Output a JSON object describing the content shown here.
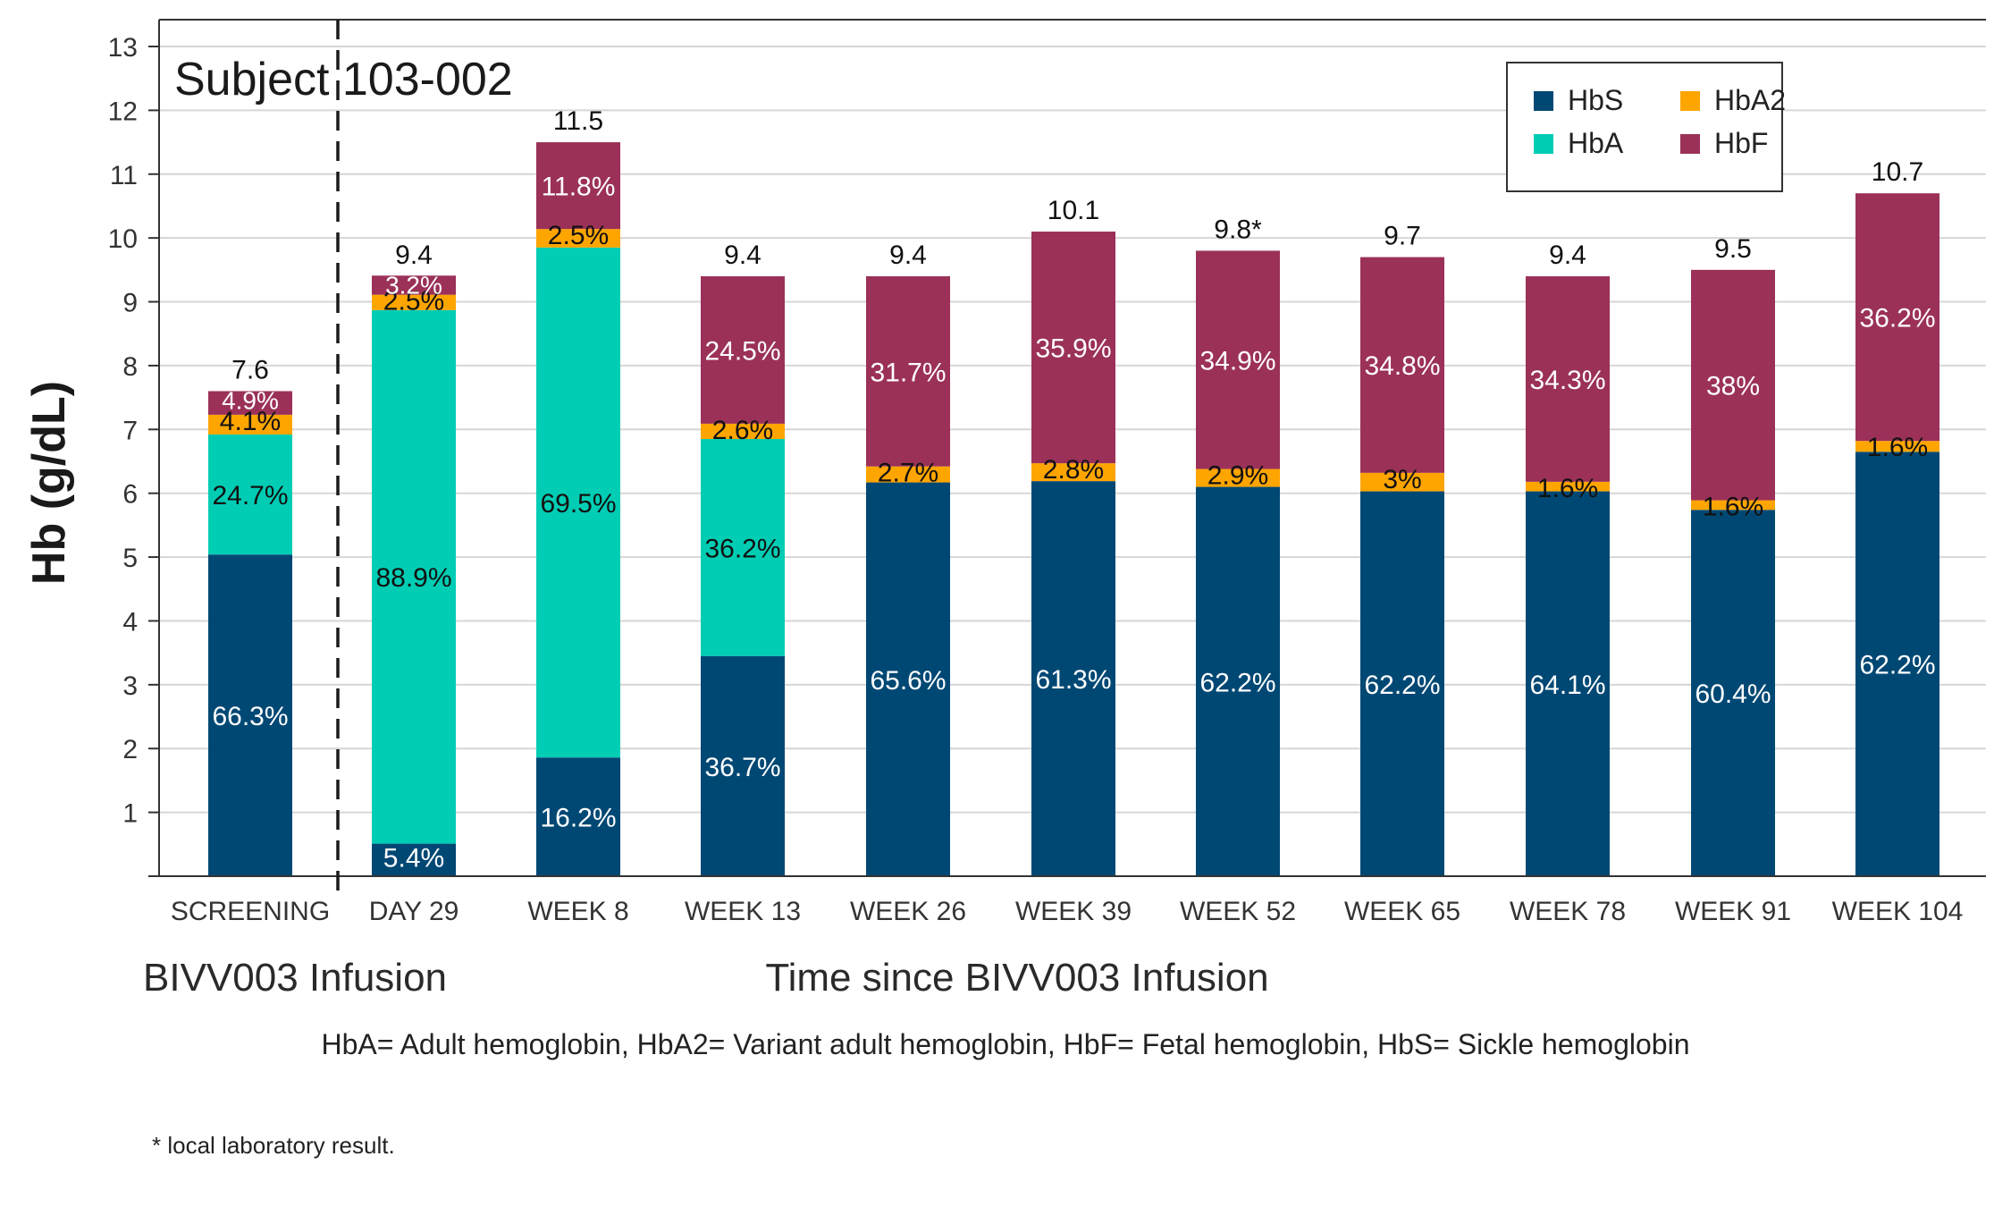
{
  "chart_data": {
    "type": "bar",
    "stacked": true,
    "title": "Subject 103-002",
    "ylabel": "Hb (g/dL)",
    "xlabel": "Time since BIVV003 Infusion",
    "infusion_label": "BIVV003 Infusion",
    "ylim": [
      0,
      13
    ],
    "yticks": [
      "1",
      "2",
      "3",
      "4",
      "5",
      "6",
      "7",
      "8",
      "9",
      "10",
      "11",
      "12",
      "13"
    ],
    "categories": [
      "SCREENING",
      "DAY 29",
      "WEEK 8",
      "WEEK 13",
      "WEEK 26",
      "WEEK 39",
      "WEEK 52",
      "WEEK 65",
      "WEEK 78",
      "WEEK 91",
      "WEEK 104"
    ],
    "totals": [
      7.6,
      9.4,
      11.5,
      9.4,
      9.4,
      10.1,
      9.8,
      9.7,
      9.4,
      9.5,
      10.7
    ],
    "total_labels": [
      "7.6",
      "9.4",
      "11.5",
      "9.4",
      "9.4",
      "10.1",
      "9.8*",
      "9.7",
      "9.4",
      "9.5",
      "10.7"
    ],
    "series": [
      {
        "name": "HbS",
        "color": "#004874",
        "values": [
          5.04,
          0.51,
          1.86,
          3.45,
          6.17,
          6.19,
          6.1,
          6.03,
          6.03,
          5.74,
          6.65
        ],
        "labels": [
          "66.3%",
          "5.4%",
          "16.2%",
          "36.7%",
          "65.6%",
          "61.3%",
          "62.2%",
          "62.2%",
          "64.1%",
          "60.4%",
          "62.2%"
        ]
      },
      {
        "name": "HbA",
        "color": "#00CDB4",
        "values": [
          1.88,
          8.36,
          7.99,
          3.4,
          0,
          0,
          0,
          0,
          0,
          0,
          0
        ],
        "labels": [
          "24.7%",
          "88.9%",
          "69.5%",
          "36.2%",
          "",
          "",
          "",
          "",
          "",
          "",
          ""
        ]
      },
      {
        "name": "HbA2",
        "color": "#FFA500",
        "values": [
          0.31,
          0.24,
          0.29,
          0.24,
          0.25,
          0.28,
          0.28,
          0.29,
          0.15,
          0.15,
          0.17
        ],
        "labels": [
          "4.1%",
          "2.5%",
          "2.5%",
          "2.6%",
          "2.7%",
          "2.8%",
          "2.9%",
          "3%",
          "1.6%",
          "1.6%",
          "1.6%"
        ]
      },
      {
        "name": "HbF",
        "color": "#9B3158",
        "values": [
          0.37,
          0.3,
          1.36,
          2.31,
          2.98,
          3.63,
          3.42,
          3.38,
          3.22,
          3.61,
          3.88
        ],
        "labels": [
          "4.9%",
          "3.2%",
          "11.8%",
          "24.5%",
          "31.7%",
          "35.9%",
          "34.9%",
          "34.8%",
          "34.3%",
          "38%",
          "36.2%"
        ]
      }
    ],
    "legend": {
      "placement": "top-right",
      "order": [
        "HbS",
        "HbA2",
        "HbA",
        "HbF"
      ]
    }
  },
  "footnotes": {
    "abbreviations": "HbA= Adult hemoglobin,  HbA2= Variant adult hemoglobin, HbF= Fetal hemoglobin, HbS= Sickle hemoglobin",
    "local": "* local laboratory result."
  }
}
